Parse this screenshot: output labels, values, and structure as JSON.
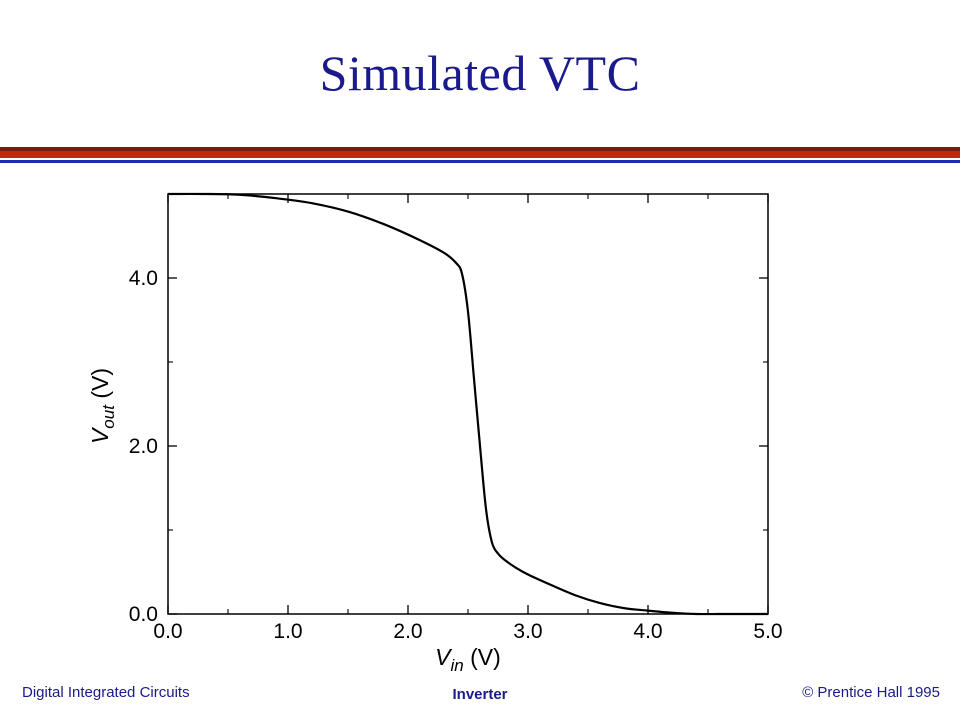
{
  "slide": {
    "title": "Simulated VTC",
    "footer_left": "Digital Integrated Circuits",
    "footer_center": "Inverter",
    "footer_right": "© Prentice Hall 1995",
    "title_color": "#1a1a8c",
    "band_colors": [
      "#7a1a12",
      "#c42517",
      "#1c2ea8"
    ]
  },
  "chart_data": {
    "type": "line",
    "xlabel_main": "V",
    "xlabel_sub": "in",
    "xlabel_unit": "(V)",
    "ylabel_main": "V",
    "ylabel_sub": "out",
    "ylabel_unit": "(V)",
    "xlim": [
      0.0,
      5.0
    ],
    "ylim": [
      0.0,
      5.0
    ],
    "x_ticks": [
      0.0,
      1.0,
      2.0,
      3.0,
      4.0,
      5.0
    ],
    "x_tick_labels": [
      "0.0",
      "1.0",
      "2.0",
      "3.0",
      "4.0",
      "5.0"
    ],
    "x_minor_ticks": [
      0.5,
      1.5,
      2.5,
      3.5,
      4.5
    ],
    "y_ticks": [
      0.0,
      2.0,
      4.0
    ],
    "y_tick_labels": [
      "0.0",
      "2.0",
      "4.0"
    ],
    "y_minor_ticks": [
      1.0,
      3.0
    ],
    "grid": false,
    "series": [
      {
        "x": [
          0.0,
          0.3,
          0.6,
          0.9,
          1.2,
          1.5,
          1.8,
          2.1,
          2.3,
          2.4,
          2.45,
          2.5,
          2.55,
          2.6,
          2.65,
          2.7,
          2.75,
          2.8,
          2.9,
          3.0,
          3.2,
          3.4,
          3.6,
          3.8,
          4.0,
          4.2,
          4.4,
          4.6,
          4.8,
          5.0
        ],
        "y": [
          5.0,
          5.0,
          4.99,
          4.95,
          4.89,
          4.79,
          4.64,
          4.45,
          4.3,
          4.18,
          4.05,
          3.6,
          2.8,
          2.0,
          1.25,
          0.85,
          0.72,
          0.65,
          0.55,
          0.47,
          0.34,
          0.22,
          0.13,
          0.07,
          0.04,
          0.015,
          0.0,
          0.0,
          0.0,
          0.0
        ],
        "color": "#000000"
      }
    ]
  }
}
